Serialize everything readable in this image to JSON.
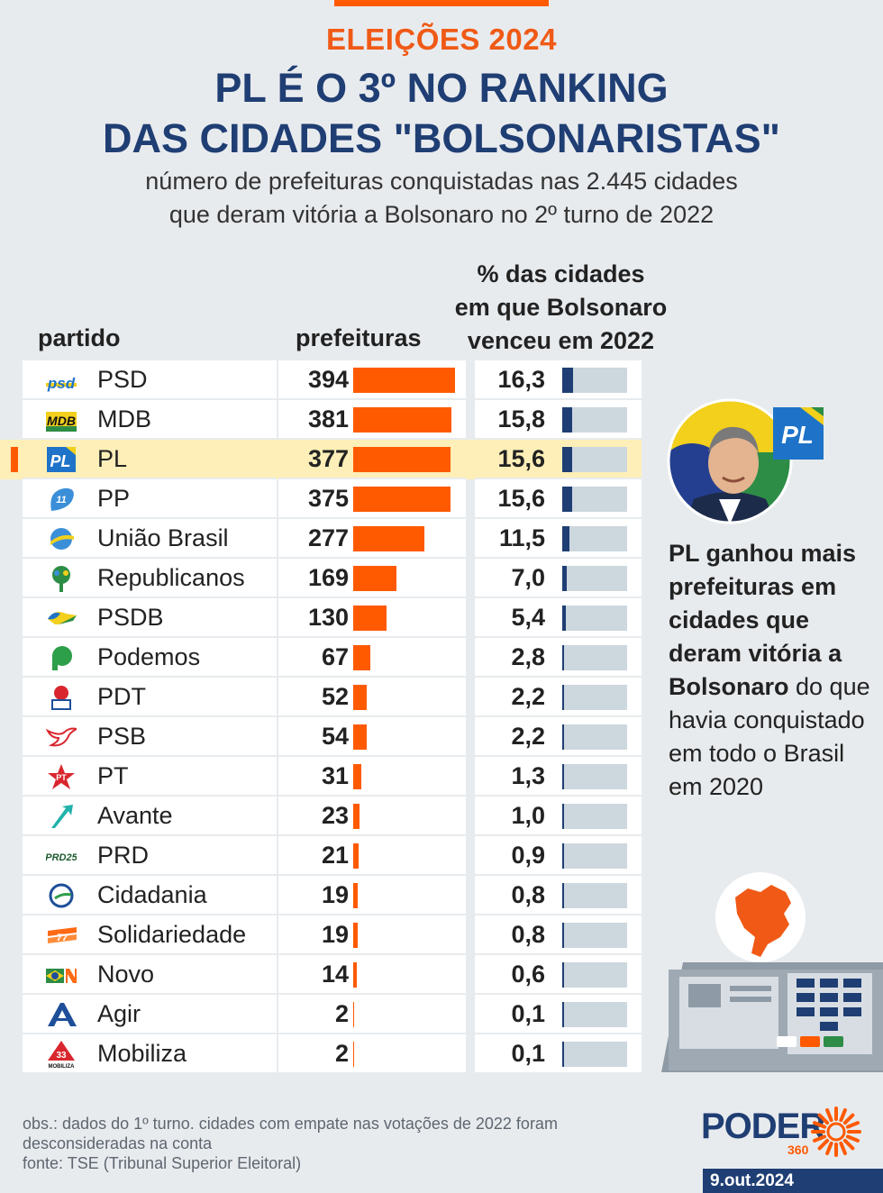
{
  "header": {
    "kicker": "ELEIÇÕES 2024",
    "title_line1": "PL É O 3º NO RANKING",
    "title_line2": "DAS CIDADES \"BOLSONARISTAS\"",
    "subtitle_line1": "número de prefeituras conquistadas nas 2.445 cidades",
    "subtitle_line2": "que deram vitória a Bolsonaro no 2º turno de 2022"
  },
  "columns": {
    "partido": "partido",
    "prefeituras": "prefeituras",
    "pct_line1": "% das cidades",
    "pct_line2": "em que Bolsonaro",
    "pct_line3": "venceu em 2022"
  },
  "chart_data": {
    "type": "table",
    "title": "PL É O 3º NO RANKING DAS CIDADES \"BOLSONARISTAS\"",
    "columns": [
      "partido",
      "prefeituras",
      "% das cidades em que Bolsonaro venceu em 2022"
    ],
    "prefeituras_max": 394,
    "pct_scale_max": 100,
    "rows": [
      {
        "partido": "PSD",
        "prefeituras": 394,
        "pct": "16,3",
        "pct_value": 16.3,
        "logo": "psd-logo",
        "highlight": false
      },
      {
        "partido": "MDB",
        "prefeituras": 381,
        "pct": "15,8",
        "pct_value": 15.8,
        "logo": "mdb-logo",
        "highlight": false
      },
      {
        "partido": "PL",
        "prefeituras": 377,
        "pct": "15,6",
        "pct_value": 15.6,
        "logo": "pl-logo",
        "highlight": true
      },
      {
        "partido": "PP",
        "prefeituras": 375,
        "pct": "15,6",
        "pct_value": 15.6,
        "logo": "pp-logo",
        "highlight": false
      },
      {
        "partido": "União Brasil",
        "prefeituras": 277,
        "pct": "11,5",
        "pct_value": 11.5,
        "logo": "uniao-brasil-logo",
        "highlight": false
      },
      {
        "partido": "Republicanos",
        "prefeituras": 169,
        "pct": "7,0",
        "pct_value": 7.0,
        "logo": "republicanos-logo",
        "highlight": false
      },
      {
        "partido": "PSDB",
        "prefeituras": 130,
        "pct": "5,4",
        "pct_value": 5.4,
        "logo": "psdb-logo",
        "highlight": false
      },
      {
        "partido": "Podemos",
        "prefeituras": 67,
        "pct": "2,8",
        "pct_value": 2.8,
        "logo": "podemos-logo",
        "highlight": false
      },
      {
        "partido": "PDT",
        "prefeituras": 52,
        "pct": "2,2",
        "pct_value": 2.2,
        "logo": "pdt-logo",
        "highlight": false
      },
      {
        "partido": "PSB",
        "prefeituras": 54,
        "pct": "2,2",
        "pct_value": 2.2,
        "logo": "psb-logo",
        "highlight": false
      },
      {
        "partido": "PT",
        "prefeituras": 31,
        "pct": "1,3",
        "pct_value": 1.3,
        "logo": "pt-logo",
        "highlight": false
      },
      {
        "partido": "Avante",
        "prefeituras": 23,
        "pct": "1,0",
        "pct_value": 1.0,
        "logo": "avante-logo",
        "highlight": false
      },
      {
        "partido": "PRD",
        "prefeituras": 21,
        "pct": "0,9",
        "pct_value": 0.9,
        "logo": "prd-logo",
        "highlight": false
      },
      {
        "partido": "Cidadania",
        "prefeituras": 19,
        "pct": "0,8",
        "pct_value": 0.8,
        "logo": "cidadania-logo",
        "highlight": false
      },
      {
        "partido": "Solidariedade",
        "prefeituras": 19,
        "pct": "0,8",
        "pct_value": 0.8,
        "logo": "solidariedade-logo",
        "highlight": false
      },
      {
        "partido": "Novo",
        "prefeituras": 14,
        "pct": "0,6",
        "pct_value": 0.6,
        "logo": "novo-logo",
        "highlight": false
      },
      {
        "partido": "Agir",
        "prefeituras": 2,
        "pct": "0,1",
        "pct_value": 0.1,
        "logo": "agir-logo",
        "highlight": false
      },
      {
        "partido": "Mobiliza",
        "prefeituras": 2,
        "pct": "0,1",
        "pct_value": 0.1,
        "logo": "mobiliza-logo",
        "highlight": false
      }
    ]
  },
  "logos": {
    "psd": "psd",
    "mdb": "MDB",
    "pl": "PL",
    "pp": "11",
    "pt": "PT",
    "prd": "PRD25",
    "solidariedade": "77",
    "mobiliza_num": "33",
    "mobiliza_txt": "MOBILIZA",
    "pl_badge": "PL"
  },
  "side_note": {
    "bold": "PL ganhou mais prefeituras em cidades que deram vitória a Bolsonaro",
    "rest": " do que havia conquistado em todo o Brasil em 2020"
  },
  "footer": {
    "obs": "obs.: dados do 1º turno. cidades com empate nas votações de 2022 foram desconsideradas na conta",
    "fonte": "fonte: TSE (Tribunal Superior Eleitoral)",
    "brand": "PODER",
    "brand_num": "360",
    "date": "9.out.2024"
  },
  "colors": {
    "accent": "#ff5a00",
    "navy": "#1f3e73",
    "track": "#cdd7de",
    "highlight": "#fdefb7"
  }
}
